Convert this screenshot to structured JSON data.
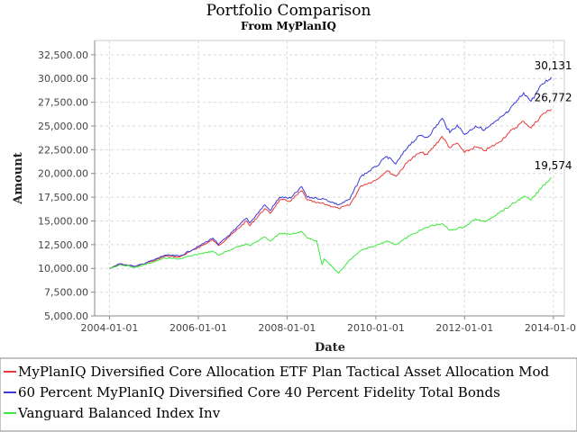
{
  "chart_data": {
    "type": "line",
    "title": "Portfolio Comparison",
    "subtitle": "From MyPlanIQ",
    "xlabel": "Date",
    "ylabel": "Amount",
    "xlim": [
      "2003-09-01",
      "2014-04-01"
    ],
    "ylim": [
      5000,
      34000
    ],
    "x_ticks": [
      "2004-01-01",
      "2006-01-01",
      "2008-01-01",
      "2010-01-01",
      "2012-01-01",
      "2014-01-01"
    ],
    "x_tick_labels": [
      "2004-01-01",
      "2006-01-01",
      "2008-01-01",
      "2010-01-01",
      "2012-01-01",
      "2014-01-01"
    ],
    "y_ticks": [
      5000,
      7500,
      10000,
      12500,
      15000,
      17500,
      20000,
      22500,
      25000,
      27500,
      30000,
      32500
    ],
    "y_tick_labels": [
      "5,000.00",
      "7,500.00",
      "10,000.00",
      "12,500.00",
      "15,000.00",
      "17,500.00",
      "20,000.00",
      "22,500.00",
      "25,000.00",
      "27,500.00",
      "30,000.00",
      "32,500.00"
    ],
    "grid": true,
    "legend_position": "bottom",
    "series": [
      {
        "name": "MyPlanIQ Diversified Core Allocation ETF Plan Tactical Asset Allocation Mod",
        "color": "#e8383a",
        "end_label": "26,772",
        "points": [
          [
            "2004-01-01",
            10000
          ],
          [
            "2004-04-01",
            10450
          ],
          [
            "2004-08-01",
            10200
          ],
          [
            "2005-01-01",
            10800
          ],
          [
            "2005-04-01",
            11300
          ],
          [
            "2005-08-01",
            11200
          ],
          [
            "2006-01-01",
            12200
          ],
          [
            "2006-05-01",
            13000
          ],
          [
            "2006-06-15",
            12400
          ],
          [
            "2006-11-01",
            13900
          ],
          [
            "2007-02-01",
            15000
          ],
          [
            "2007-03-01",
            14500
          ],
          [
            "2007-07-01",
            16300
          ],
          [
            "2007-08-15",
            15800
          ],
          [
            "2007-11-01",
            17200
          ],
          [
            "2008-02-01",
            17100
          ],
          [
            "2008-05-01",
            18200
          ],
          [
            "2008-06-15",
            17200
          ],
          [
            "2008-09-01",
            16900
          ],
          [
            "2008-11-01",
            16800
          ],
          [
            "2009-03-01",
            16300
          ],
          [
            "2009-06-01",
            16700
          ],
          [
            "2009-09-01",
            18700
          ],
          [
            "2010-01-01",
            19300
          ],
          [
            "2010-04-01",
            20300
          ],
          [
            "2010-06-15",
            19700
          ],
          [
            "2010-10-01",
            21400
          ],
          [
            "2011-01-01",
            22200
          ],
          [
            "2011-03-01",
            22000
          ],
          [
            "2011-07-01",
            23900
          ],
          [
            "2011-09-01",
            22700
          ],
          [
            "2011-11-01",
            23200
          ],
          [
            "2012-01-01",
            22200
          ],
          [
            "2012-04-01",
            22800
          ],
          [
            "2012-06-15",
            22400
          ],
          [
            "2012-10-01",
            23200
          ],
          [
            "2013-01-01",
            24300
          ],
          [
            "2013-05-01",
            25500
          ],
          [
            "2013-07-01",
            24800
          ],
          [
            "2013-10-01",
            26200
          ],
          [
            "2013-12-15",
            26772
          ]
        ]
      },
      {
        "name": "60 Percent MyPlanIQ Diversified Core 40 Percent Fidelity Total Bonds",
        "color": "#3b3bd8",
        "end_label": "30,131",
        "points": [
          [
            "2004-01-01",
            10000
          ],
          [
            "2004-04-01",
            10500
          ],
          [
            "2004-08-01",
            10200
          ],
          [
            "2005-01-01",
            10900
          ],
          [
            "2005-04-01",
            11400
          ],
          [
            "2005-08-01",
            11300
          ],
          [
            "2006-01-01",
            12300
          ],
          [
            "2006-05-01",
            13200
          ],
          [
            "2006-06-15",
            12500
          ],
          [
            "2006-11-01",
            14100
          ],
          [
            "2007-02-01",
            15300
          ],
          [
            "2007-03-01",
            14800
          ],
          [
            "2007-07-01",
            16700
          ],
          [
            "2007-08-15",
            16100
          ],
          [
            "2007-11-01",
            17500
          ],
          [
            "2008-02-01",
            17400
          ],
          [
            "2008-05-01",
            18600
          ],
          [
            "2008-06-15",
            17500
          ],
          [
            "2008-09-01",
            17400
          ],
          [
            "2008-11-01",
            17300
          ],
          [
            "2009-03-01",
            16700
          ],
          [
            "2009-06-01",
            17300
          ],
          [
            "2009-09-01",
            19700
          ],
          [
            "2010-01-01",
            20700
          ],
          [
            "2010-04-01",
            21800
          ],
          [
            "2010-06-15",
            21000
          ],
          [
            "2010-10-01",
            23000
          ],
          [
            "2011-01-01",
            24000
          ],
          [
            "2011-03-01",
            23800
          ],
          [
            "2011-07-01",
            25800
          ],
          [
            "2011-09-01",
            24300
          ],
          [
            "2011-11-01",
            25100
          ],
          [
            "2012-01-01",
            24100
          ],
          [
            "2012-04-01",
            25000
          ],
          [
            "2012-06-15",
            24600
          ],
          [
            "2012-10-01",
            25600
          ],
          [
            "2013-01-01",
            26600
          ],
          [
            "2013-05-01",
            28500
          ],
          [
            "2013-07-01",
            27600
          ],
          [
            "2013-10-01",
            29400
          ],
          [
            "2013-12-15",
            30131
          ]
        ]
      },
      {
        "name": "Vanguard Balanced Index Inv",
        "color": "#3ee83e",
        "end_label": "19,574",
        "points": [
          [
            "2004-01-01",
            10000
          ],
          [
            "2004-04-01",
            10400
          ],
          [
            "2004-08-01",
            10100
          ],
          [
            "2005-01-01",
            10700
          ],
          [
            "2005-04-01",
            11100
          ],
          [
            "2005-08-01",
            11000
          ],
          [
            "2006-01-01",
            11500
          ],
          [
            "2006-05-01",
            11800
          ],
          [
            "2006-06-15",
            11400
          ],
          [
            "2006-11-01",
            12200
          ],
          [
            "2007-02-01",
            12600
          ],
          [
            "2007-03-01",
            12400
          ],
          [
            "2007-07-01",
            13300
          ],
          [
            "2007-08-15",
            12900
          ],
          [
            "2007-11-01",
            13700
          ],
          [
            "2008-02-01",
            13600
          ],
          [
            "2008-05-01",
            13900
          ],
          [
            "2008-06-15",
            13200
          ],
          [
            "2008-09-01",
            12900
          ],
          [
            "2008-10-15",
            10400
          ],
          [
            "2008-11-01",
            11000
          ],
          [
            "2009-03-01",
            9500
          ],
          [
            "2009-06-01",
            10900
          ],
          [
            "2009-09-01",
            11900
          ],
          [
            "2010-01-01",
            12400
          ],
          [
            "2010-04-01",
            12900
          ],
          [
            "2010-06-15",
            12500
          ],
          [
            "2010-10-01",
            13400
          ],
          [
            "2011-01-01",
            14000
          ],
          [
            "2011-04-01",
            14500
          ],
          [
            "2011-07-01",
            14700
          ],
          [
            "2011-09-01",
            14000
          ],
          [
            "2012-01-01",
            14400
          ],
          [
            "2012-04-01",
            15200
          ],
          [
            "2012-06-15",
            14900
          ],
          [
            "2012-10-01",
            15800
          ],
          [
            "2013-01-01",
            16500
          ],
          [
            "2013-05-01",
            17600
          ],
          [
            "2013-07-01",
            17200
          ],
          [
            "2013-10-01",
            18600
          ],
          [
            "2013-12-15",
            19574
          ]
        ]
      }
    ]
  }
}
